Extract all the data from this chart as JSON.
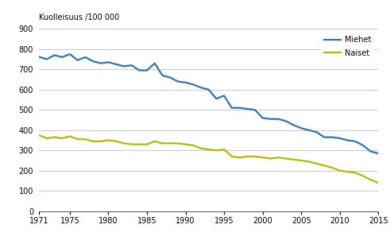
{
  "years": [
    1971,
    1972,
    1973,
    1974,
    1975,
    1976,
    1977,
    1978,
    1979,
    1980,
    1981,
    1982,
    1983,
    1984,
    1985,
    1986,
    1987,
    1988,
    1989,
    1990,
    1991,
    1992,
    1993,
    1994,
    1995,
    1996,
    1997,
    1998,
    1999,
    2000,
    2001,
    2002,
    2003,
    2004,
    2005,
    2006,
    2007,
    2008,
    2009,
    2010,
    2011,
    2012,
    2013,
    2014,
    2015
  ],
  "miehet": [
    762,
    750,
    770,
    760,
    775,
    745,
    760,
    740,
    730,
    735,
    725,
    715,
    720,
    695,
    695,
    730,
    670,
    660,
    640,
    635,
    625,
    610,
    600,
    555,
    570,
    510,
    510,
    505,
    500,
    460,
    455,
    455,
    445,
    425,
    410,
    400,
    390,
    365,
    365,
    360,
    350,
    345,
    325,
    295,
    285
  ],
  "naiset": [
    375,
    360,
    365,
    360,
    370,
    355,
    355,
    345,
    345,
    350,
    345,
    335,
    330,
    330,
    330,
    345,
    335,
    335,
    335,
    330,
    325,
    310,
    305,
    300,
    305,
    270,
    265,
    270,
    270,
    265,
    260,
    265,
    260,
    255,
    250,
    245,
    235,
    225,
    215,
    200,
    195,
    190,
    175,
    155,
    140
  ],
  "miehet_color": "#2E75B6",
  "naiset_color": "#b5b800",
  "ylabel": "Kuolleisuus /100 000",
  "ylim": [
    0,
    900
  ],
  "xlim": [
    1971,
    2015
  ],
  "yticks": [
    0,
    100,
    200,
    300,
    400,
    500,
    600,
    700,
    800,
    900
  ],
  "xticks": [
    1971,
    1975,
    1980,
    1985,
    1990,
    1995,
    2000,
    2005,
    2010,
    2015
  ],
  "legend_miehet": "Miehet",
  "legend_naiset": "Naiset",
  "line_width": 1.6,
  "background_color": "#ffffff",
  "grid_color": "#c8c8c8"
}
